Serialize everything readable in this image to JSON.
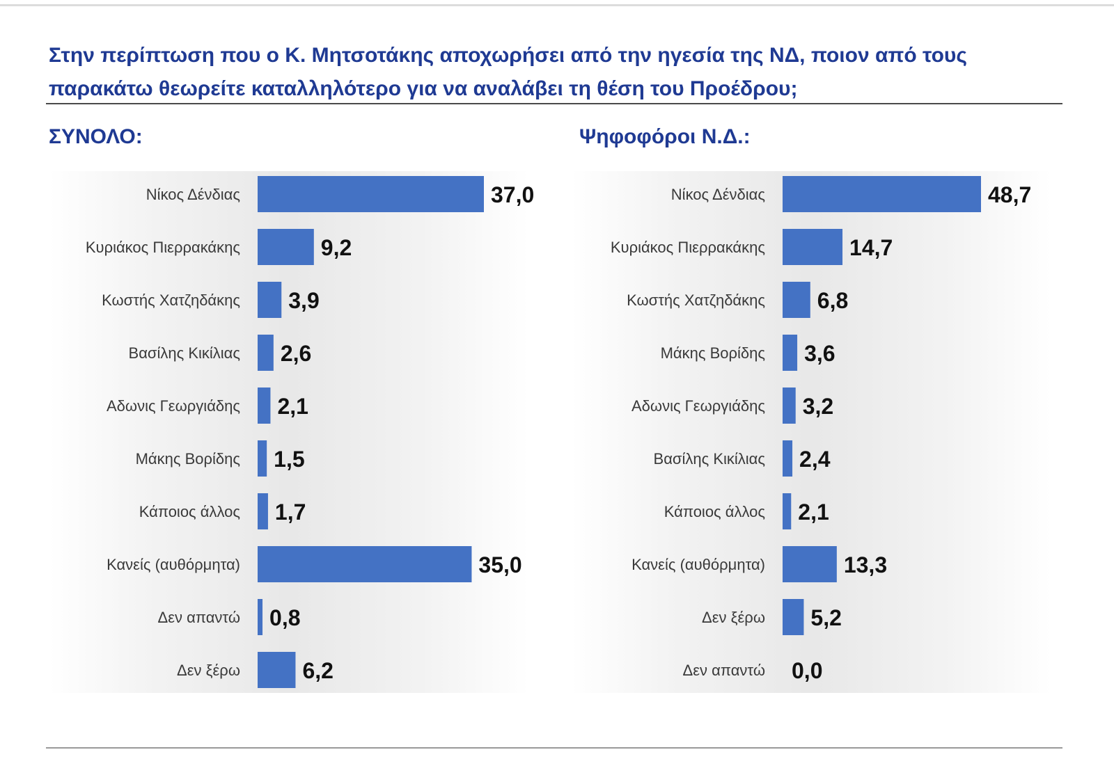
{
  "title": "Στην περίπτωση που ο Κ. Μητσοτάκης αποχωρήσει από την ηγεσία της ΝΔ, ποιον από τους παρακάτω θεωρείτε καταλληλότερο για να αναλάβει τη θέση του Προέδρου;",
  "colors": {
    "bar": "#4472c4",
    "title": "#1f3a93"
  },
  "chart_data": [
    {
      "type": "bar",
      "orientation": "horizontal",
      "title": "ΣΥΝΟΛΟ:",
      "categories": [
        "Νίκος Δένδιας",
        "Κυριάκος Πιερρακάκης",
        "Κωστής Χατζηδάκης",
        "Βασίλης Κικίλιας",
        "Αδωνις Γεωργιάδης",
        "Μάκης Βορίδης",
        "Κάποιος άλλος",
        "Κανείς (αυθόρμητα)",
        "Δεν απαντώ",
        "Δεν ξέρω"
      ],
      "values": [
        37.0,
        9.2,
        3.9,
        2.6,
        2.1,
        1.5,
        1.7,
        35.0,
        0.8,
        6.2
      ],
      "value_labels": [
        "37,0",
        "9,2",
        "3,9",
        "2,6",
        "2,1",
        "1,5",
        "1,7",
        "35,0",
        "0,8",
        "6,2"
      ],
      "xlim": [
        0,
        37.0
      ],
      "grid": false
    },
    {
      "type": "bar",
      "orientation": "horizontal",
      "title": "Ψηφοφόροι Ν.Δ.:",
      "categories": [
        "Νίκος Δένδιας",
        "Κυριάκος Πιερρακάκης",
        "Κωστής Χατζηδάκης",
        "Μάκης Βορίδης",
        "Αδωνις Γεωργιάδης",
        "Βασίλης Κικίλιας",
        "Κάποιος άλλος",
        "Κανείς (αυθόρμητα)",
        "Δεν ξέρω",
        "Δεν απαντώ"
      ],
      "values": [
        48.7,
        14.7,
        6.8,
        3.6,
        3.2,
        2.4,
        2.1,
        13.3,
        5.2,
        0.0
      ],
      "value_labels": [
        "48,7",
        "14,7",
        "6,8",
        "3,6",
        "3,2",
        "2,4",
        "2,1",
        "13,3",
        "5,2",
        "0,0"
      ],
      "xlim": [
        0,
        48.7
      ],
      "grid": false
    }
  ]
}
